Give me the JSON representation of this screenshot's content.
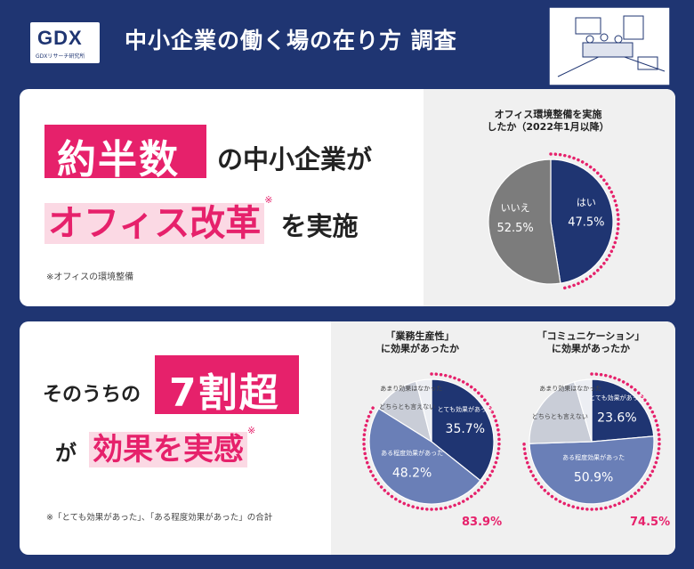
{
  "header": {
    "logo_mark": "GDX",
    "logo_sub": "GDXリサーチ研究所",
    "title": "中小企業の働く場の在り方 調査"
  },
  "section1": {
    "box_text": "約半数",
    "line1_rest": "の中小企業が",
    "highlight": "オフィス改革",
    "mark": "※",
    "line2_rest": "を実施",
    "note": "※オフィスの環境整備"
  },
  "section2": {
    "line1_left": "そのうちの",
    "box_text": "7割超",
    "line2_left": "が",
    "highlight": "効果を実感",
    "mark": "※",
    "note": "※「とても効果があった」、「ある程度効果があった」の合計"
  },
  "colors": {
    "navy": "#1f3572",
    "pink": "#e6216b",
    "grey": "#7c7c7c",
    "blue": "#6a7fb7",
    "lightgrey": "#c9cdd7"
  },
  "chart_data": [
    {
      "type": "pie",
      "title": "オフィス環境整備を実施したか（2022年1月以降）",
      "title_lines": [
        "オフィス環境整備を実施",
        "したか（2022年1月以降）"
      ],
      "slices": [
        {
          "label": "はい",
          "value": 47.5,
          "display": "47.5%",
          "color": "#1f3572",
          "highlight": true
        },
        {
          "label": "いいえ",
          "value": 52.5,
          "display": "52.5%",
          "color": "#7c7c7c",
          "highlight": false
        }
      ]
    },
    {
      "type": "pie",
      "title": "「業務生産性」に効果があったか",
      "title_lines": [
        "「業務生産性」",
        "に効果があったか"
      ],
      "total": "83.9%",
      "slices": [
        {
          "label": "とても効果があった",
          "value": 35.7,
          "display": "35.7%",
          "color": "#1f3572",
          "highlight": true
        },
        {
          "label": "ある程度効果があった",
          "value": 48.2,
          "display": "48.2%",
          "color": "#6a7fb7",
          "highlight": true
        },
        {
          "label": "どちらとも言えない",
          "value": 12.1,
          "display": "",
          "color": "#c9cdd7",
          "highlight": false
        },
        {
          "label": "あまり効果はなかった",
          "value": 4.0,
          "display": "",
          "color": "#eceef3",
          "highlight": false
        }
      ]
    },
    {
      "type": "pie",
      "title": "「コミュニケーション」に効果があったか",
      "title_lines": [
        "「コミュニケーション」",
        "に効果があったか"
      ],
      "total": "74.5%",
      "slices": [
        {
          "label": "とても効果があった",
          "value": 23.6,
          "display": "23.6%",
          "color": "#1f3572",
          "highlight": true
        },
        {
          "label": "ある程度効果があった",
          "value": 50.9,
          "display": "50.9%",
          "color": "#6a7fb7",
          "highlight": true
        },
        {
          "label": "どちらとも言えない",
          "value": 21.0,
          "display": "",
          "color": "#c9cdd7",
          "highlight": false
        },
        {
          "label": "あまり効果はなかった",
          "value": 4.5,
          "display": "",
          "color": "#eceef3",
          "highlight": false
        }
      ]
    }
  ]
}
